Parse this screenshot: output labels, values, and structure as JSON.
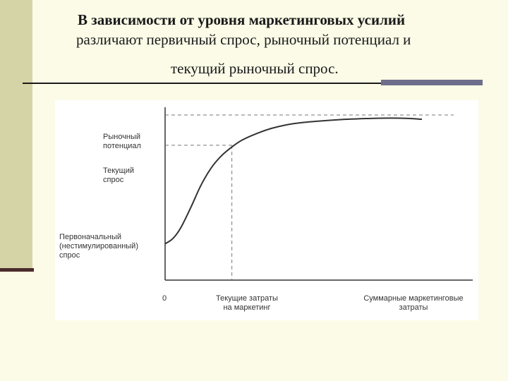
{
  "header": {
    "line1": "В зависимости от уровня маркетинговых усилий",
    "line2": "различают первичный спрос, рыночный потенциал и",
    "line3": "текущий рыночный спрос."
  },
  "colors": {
    "background": "#fbfbe7",
    "side_band": "#d4d4a6",
    "accent_bar": "#6e6e8c",
    "curve": "#333333"
  },
  "diagram": {
    "y_labels": {
      "market_potential": "Рыночный\nпотенциал",
      "current_demand": "Текущий\nспрос",
      "primary_demand": "Первоначальный\n(нестимулированный)\nспрос"
    },
    "x_labels": {
      "origin": "0",
      "current_costs": "Текущие затраты\nна маркетинг",
      "total_costs": "Суммарные маркетинговые\nзатраты"
    }
  },
  "chart_data": {
    "type": "line",
    "series": [
      {
        "x": [
          0,
          0.03,
          0.06,
          0.1,
          0.14,
          0.18,
          0.22,
          0.26,
          0.3,
          0.36,
          0.42,
          0.5,
          0.6,
          0.7,
          0.8,
          0.88,
          0.95,
          1.0
        ],
        "y": [
          0.21,
          0.24,
          0.3,
          0.42,
          0.55,
          0.65,
          0.72,
          0.77,
          0.81,
          0.85,
          0.88,
          0.905,
          0.92,
          0.93,
          0.935,
          0.937,
          0.935,
          0.93
        ]
      }
    ],
    "reference_levels": {
      "market_potential": 0.955,
      "current_demand": 0.78
    },
    "reference_x": {
      "current_costs": 0.26
    },
    "xlim": [
      0,
      1
    ],
    "ylim": [
      0,
      1
    ],
    "grid": false
  }
}
